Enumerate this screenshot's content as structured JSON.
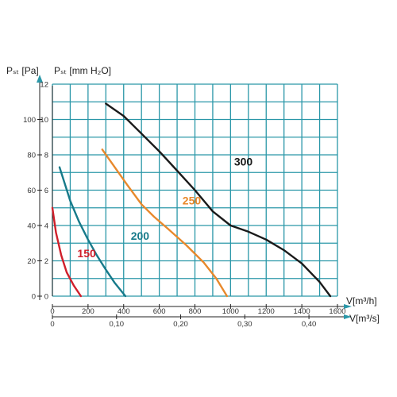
{
  "chart_data": {
    "type": "line",
    "title": "",
    "left_axis_label": "Pₛₜ [Pa]",
    "inner_axis_label": "Pₛₜ [mm H₂O]",
    "x_axis_label_flow_hour": "V[m³/h]",
    "x_axis_label_flow_second": "V[m³/s]",
    "left_axis_ticks": [
      "0",
      "20",
      "40",
      "60",
      "80",
      "100"
    ],
    "inner_axis_ticks": [
      "0",
      "2",
      "4",
      "6",
      "8",
      "10",
      "12"
    ],
    "x_ticks_hour": [
      "0",
      "200",
      "400",
      "600",
      "800",
      "1000",
      "1200",
      "1400",
      "1600"
    ],
    "x_ticks_second": [
      "0",
      "0,10",
      "0,20",
      "0,30",
      "0,40"
    ],
    "xlim_hour": [
      0,
      1600
    ],
    "ylim_mm": [
      0,
      12
    ],
    "grid": true,
    "colors": {
      "grid": "#2a97a8",
      "axis": "#222222"
    },
    "series": [
      {
        "name": "150",
        "color": "#d01f2b",
        "label_at": [
          140,
          2.2
        ],
        "x": [
          0,
          20,
          50,
          80,
          120,
          160
        ],
        "y": [
          5.0,
          3.6,
          2.3,
          1.35,
          0.6,
          0.0
        ]
      },
      {
        "name": "200",
        "color": "#177a8a",
        "label_at": [
          440,
          3.2
        ],
        "x": [
          40,
          100,
          150,
          200,
          250,
          300,
          350,
          410
        ],
        "y": [
          7.3,
          5.4,
          4.2,
          3.2,
          2.3,
          1.5,
          0.75,
          0.0
        ]
      },
      {
        "name": "250",
        "color": "#e8892c",
        "label_at": [
          730,
          5.2
        ],
        "x": [
          280,
          350,
          420,
          500,
          570,
          650,
          750,
          850,
          920,
          980
        ],
        "y": [
          8.3,
          7.3,
          6.3,
          5.2,
          4.5,
          3.8,
          2.9,
          1.9,
          1.0,
          0.0
        ]
      },
      {
        "name": "300",
        "color": "#1a1a1a",
        "label_at": [
          1020,
          7.4
        ],
        "x": [
          300,
          400,
          500,
          600,
          700,
          800,
          900,
          1000,
          1100,
          1200,
          1300,
          1400,
          1500,
          1560
        ],
        "y": [
          10.9,
          10.2,
          9.2,
          8.2,
          7.1,
          6.0,
          4.8,
          4.0,
          3.65,
          3.2,
          2.6,
          1.85,
          0.8,
          0.0
        ]
      }
    ]
  }
}
